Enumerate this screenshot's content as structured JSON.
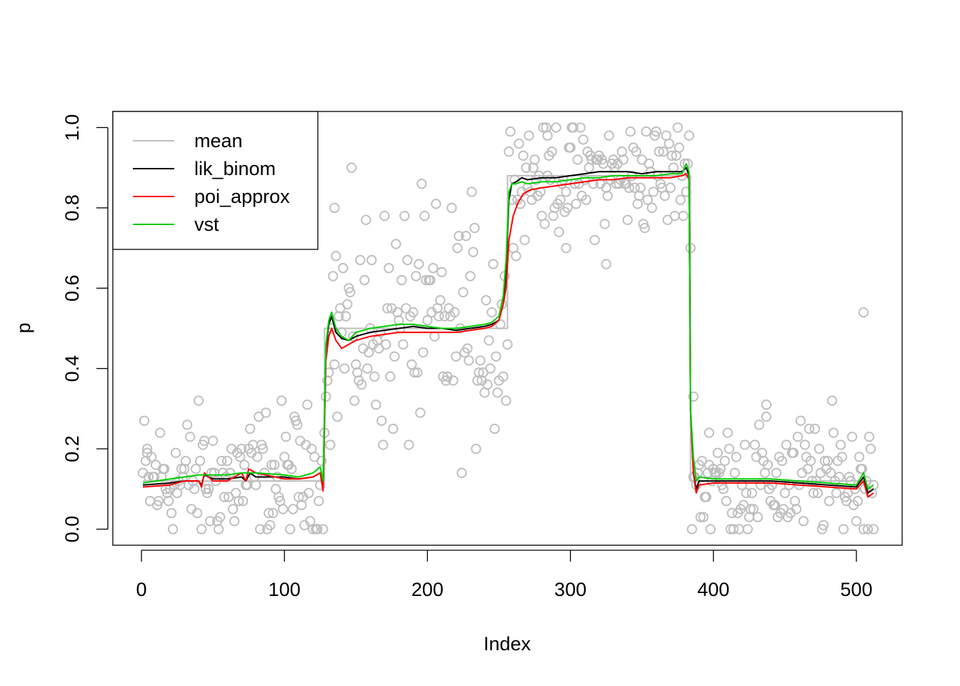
{
  "chart_data": {
    "type": "scatter",
    "xlabel": "Index",
    "ylabel": "p",
    "xlim": [
      -20,
      532
    ],
    "ylim": [
      -0.04,
      1.04
    ],
    "x_ticks": [
      0,
      100,
      200,
      300,
      400,
      500
    ],
    "y_ticks": [
      0.0,
      0.2,
      0.4,
      0.6,
      0.8,
      1.0
    ],
    "y_tick_labels": [
      "0.0",
      "0.2",
      "0.4",
      "0.6",
      "0.8",
      "1.0"
    ],
    "grid": false,
    "legend": {
      "position": "top-left",
      "entries": [
        "mean",
        "lik_binom",
        "poi_approx",
        "vst"
      ]
    },
    "points": {
      "color": "#bebebe",
      "marker": "open-circle",
      "segments": [
        {
          "x_range": [
            1,
            128
          ],
          "center": 0.12,
          "spread": 0.09
        },
        {
          "x_range": [
            129,
            256
          ],
          "center": 0.5,
          "spread": 0.15
        },
        {
          "x_range": [
            257,
            384
          ],
          "center": 0.88,
          "spread": 0.07
        },
        {
          "x_range": [
            385,
            512
          ],
          "center": 0.12,
          "spread": 0.08
        }
      ],
      "outliers": [
        [
          505,
          0.54
        ],
        [
          284,
          0.98
        ],
        [
          135,
          0.8
        ],
        [
          325,
          0.66
        ],
        [
          297,
          0.7
        ],
        [
          386,
          0.33
        ],
        [
          397,
          0.24
        ],
        [
          437,
          0.28
        ],
        [
          512,
          0.0
        ],
        [
          4,
          0.2
        ]
      ]
    },
    "series": [
      {
        "name": "mean",
        "color": "#bebebe",
        "points": [
          [
            1,
            0.12
          ],
          [
            128,
            0.12
          ],
          [
            128,
            0.5
          ],
          [
            256,
            0.5
          ],
          [
            256,
            0.88
          ],
          [
            384,
            0.88
          ],
          [
            384,
            0.12
          ],
          [
            512,
            0.12
          ]
        ]
      },
      {
        "name": "lik_binom",
        "color": "#000000",
        "points": [
          [
            1,
            0.11
          ],
          [
            20,
            0.115
          ],
          [
            30,
            0.12
          ],
          [
            40,
            0.12
          ],
          [
            42,
            0.11
          ],
          [
            44,
            0.135
          ],
          [
            50,
            0.125
          ],
          [
            60,
            0.125
          ],
          [
            70,
            0.13
          ],
          [
            73,
            0.12
          ],
          [
            76,
            0.14
          ],
          [
            80,
            0.13
          ],
          [
            100,
            0.13
          ],
          [
            110,
            0.125
          ],
          [
            120,
            0.13
          ],
          [
            125,
            0.14
          ],
          [
            127,
            0.11
          ],
          [
            129,
            0.45
          ],
          [
            131,
            0.51
          ],
          [
            133,
            0.53
          ],
          [
            136,
            0.49
          ],
          [
            140,
            0.475
          ],
          [
            145,
            0.47
          ],
          [
            150,
            0.48
          ],
          [
            160,
            0.49
          ],
          [
            170,
            0.495
          ],
          [
            180,
            0.5
          ],
          [
            190,
            0.505
          ],
          [
            200,
            0.5
          ],
          [
            210,
            0.5
          ],
          [
            220,
            0.495
          ],
          [
            230,
            0.5
          ],
          [
            240,
            0.505
          ],
          [
            245,
            0.51
          ],
          [
            250,
            0.52
          ],
          [
            253,
            0.56
          ],
          [
            255,
            0.65
          ],
          [
            257,
            0.82
          ],
          [
            259,
            0.86
          ],
          [
            262,
            0.865
          ],
          [
            266,
            0.875
          ],
          [
            270,
            0.87
          ],
          [
            280,
            0.875
          ],
          [
            290,
            0.875
          ],
          [
            300,
            0.88
          ],
          [
            310,
            0.885
          ],
          [
            320,
            0.89
          ],
          [
            330,
            0.89
          ],
          [
            340,
            0.89
          ],
          [
            350,
            0.885
          ],
          [
            360,
            0.89
          ],
          [
            370,
            0.89
          ],
          [
            378,
            0.89
          ],
          [
            381,
            0.9
          ],
          [
            383,
            0.88
          ],
          [
            384,
            0.3
          ],
          [
            386,
            0.14
          ],
          [
            388,
            0.1
          ],
          [
            390,
            0.12
          ],
          [
            400,
            0.12
          ],
          [
            420,
            0.12
          ],
          [
            440,
            0.12
          ],
          [
            460,
            0.115
          ],
          [
            480,
            0.11
          ],
          [
            500,
            0.105
          ],
          [
            505,
            0.13
          ],
          [
            508,
            0.09
          ],
          [
            512,
            0.1
          ]
        ]
      },
      {
        "name": "poi_approx",
        "color": "#ff0000",
        "points": [
          [
            1,
            0.105
          ],
          [
            20,
            0.11
          ],
          [
            30,
            0.12
          ],
          [
            40,
            0.12
          ],
          [
            42,
            0.105
          ],
          [
            44,
            0.14
          ],
          [
            50,
            0.12
          ],
          [
            60,
            0.12
          ],
          [
            70,
            0.14
          ],
          [
            73,
            0.12
          ],
          [
            75,
            0.15
          ],
          [
            80,
            0.14
          ],
          [
            100,
            0.125
          ],
          [
            110,
            0.125
          ],
          [
            120,
            0.13
          ],
          [
            125,
            0.14
          ],
          [
            127,
            0.095
          ],
          [
            129,
            0.42
          ],
          [
            131,
            0.48
          ],
          [
            133,
            0.5
          ],
          [
            136,
            0.47
          ],
          [
            140,
            0.45
          ],
          [
            145,
            0.46
          ],
          [
            150,
            0.47
          ],
          [
            160,
            0.48
          ],
          [
            170,
            0.485
          ],
          [
            180,
            0.49
          ],
          [
            190,
            0.49
          ],
          [
            200,
            0.49
          ],
          [
            210,
            0.49
          ],
          [
            220,
            0.49
          ],
          [
            230,
            0.495
          ],
          [
            240,
            0.5
          ],
          [
            245,
            0.505
          ],
          [
            250,
            0.52
          ],
          [
            253,
            0.56
          ],
          [
            255,
            0.6
          ],
          [
            257,
            0.72
          ],
          [
            260,
            0.78
          ],
          [
            263,
            0.81
          ],
          [
            267,
            0.835
          ],
          [
            272,
            0.845
          ],
          [
            280,
            0.85
          ],
          [
            290,
            0.855
          ],
          [
            300,
            0.86
          ],
          [
            310,
            0.865
          ],
          [
            320,
            0.87
          ],
          [
            330,
            0.87
          ],
          [
            340,
            0.875
          ],
          [
            350,
            0.875
          ],
          [
            360,
            0.875
          ],
          [
            370,
            0.875
          ],
          [
            378,
            0.88
          ],
          [
            381,
            0.885
          ],
          [
            383,
            0.87
          ],
          [
            384,
            0.3
          ],
          [
            386,
            0.14
          ],
          [
            388,
            0.09
          ],
          [
            390,
            0.11
          ],
          [
            400,
            0.115
          ],
          [
            420,
            0.115
          ],
          [
            440,
            0.115
          ],
          [
            460,
            0.11
          ],
          [
            480,
            0.105
          ],
          [
            500,
            0.1
          ],
          [
            505,
            0.12
          ],
          [
            508,
            0.08
          ],
          [
            512,
            0.09
          ]
        ]
      },
      {
        "name": "vst",
        "color": "#00cd00",
        "points": [
          [
            1,
            0.115
          ],
          [
            20,
            0.125
          ],
          [
            30,
            0.13
          ],
          [
            40,
            0.135
          ],
          [
            50,
            0.135
          ],
          [
            60,
            0.135
          ],
          [
            70,
            0.14
          ],
          [
            80,
            0.14
          ],
          [
            100,
            0.135
          ],
          [
            110,
            0.13
          ],
          [
            120,
            0.14
          ],
          [
            125,
            0.155
          ],
          [
            127,
            0.12
          ],
          [
            129,
            0.46
          ],
          [
            131,
            0.52
          ],
          [
            133,
            0.54
          ],
          [
            136,
            0.5
          ],
          [
            140,
            0.48
          ],
          [
            145,
            0.47
          ],
          [
            150,
            0.49
          ],
          [
            160,
            0.5
          ],
          [
            170,
            0.505
          ],
          [
            180,
            0.51
          ],
          [
            190,
            0.51
          ],
          [
            200,
            0.505
          ],
          [
            210,
            0.5
          ],
          [
            220,
            0.5
          ],
          [
            230,
            0.505
          ],
          [
            240,
            0.51
          ],
          [
            245,
            0.515
          ],
          [
            250,
            0.53
          ],
          [
            253,
            0.58
          ],
          [
            255,
            0.67
          ],
          [
            257,
            0.84
          ],
          [
            259,
            0.86
          ],
          [
            262,
            0.86
          ],
          [
            266,
            0.865
          ],
          [
            270,
            0.86
          ],
          [
            280,
            0.865
          ],
          [
            290,
            0.865
          ],
          [
            300,
            0.87
          ],
          [
            310,
            0.875
          ],
          [
            320,
            0.875
          ],
          [
            330,
            0.88
          ],
          [
            340,
            0.88
          ],
          [
            350,
            0.88
          ],
          [
            360,
            0.88
          ],
          [
            370,
            0.885
          ],
          [
            378,
            0.885
          ],
          [
            381,
            0.91
          ],
          [
            383,
            0.89
          ],
          [
            384,
            0.3
          ],
          [
            386,
            0.18
          ],
          [
            388,
            0.12
          ],
          [
            390,
            0.13
          ],
          [
            400,
            0.125
          ],
          [
            420,
            0.125
          ],
          [
            440,
            0.125
          ],
          [
            460,
            0.12
          ],
          [
            480,
            0.115
          ],
          [
            500,
            0.11
          ],
          [
            505,
            0.14
          ],
          [
            508,
            0.1
          ],
          [
            512,
            0.11
          ]
        ]
      }
    ]
  }
}
